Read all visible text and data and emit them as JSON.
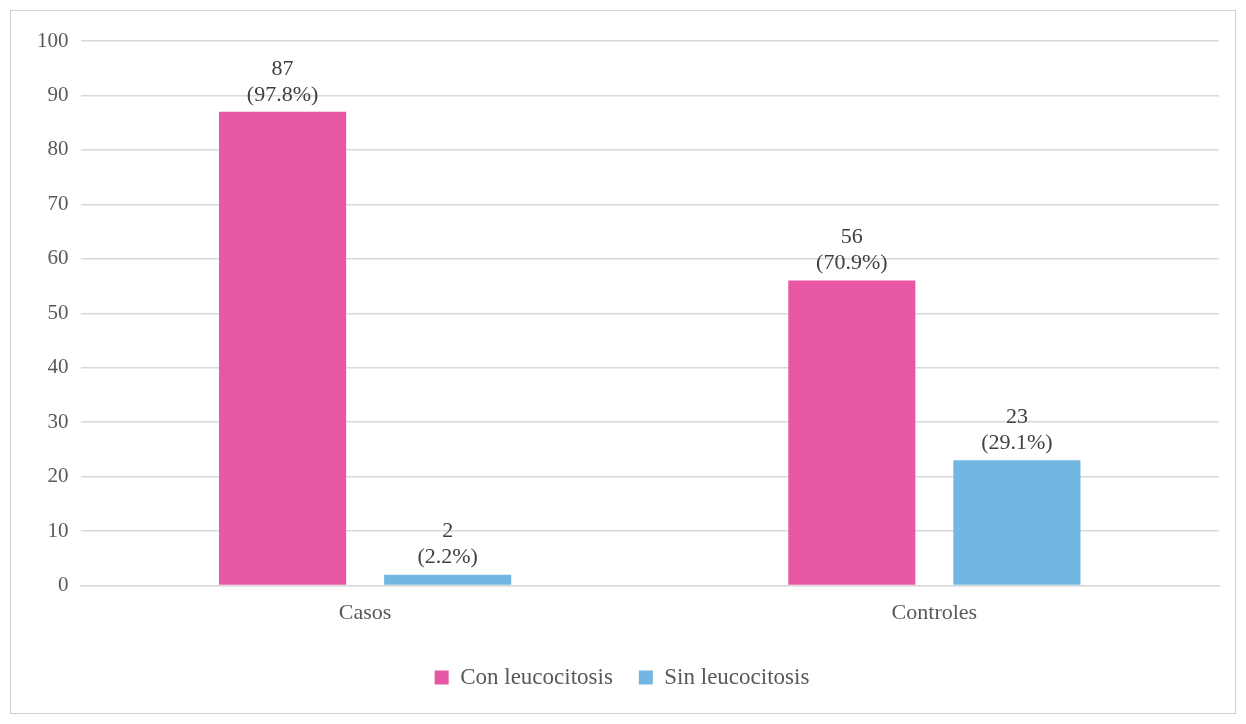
{
  "chart_data": {
    "type": "bar",
    "categories": [
      "Casos",
      "Controles"
    ],
    "series": [
      {
        "name": "Con leucocitosis",
        "color": "#e857a4",
        "values": [
          87,
          56
        ],
        "value_labels": [
          "87\n(97.8%)",
          "56\n(70.9%)"
        ]
      },
      {
        "name": "Sin leucocitosis",
        "color": "#71b7e1",
        "values": [
          2,
          23
        ],
        "value_labels": [
          "2\n(2.2%)",
          "23\n(29.1%)"
        ]
      }
    ],
    "ylim": [
      0,
      100
    ],
    "yticks": [
      0,
      10,
      20,
      30,
      40,
      50,
      60,
      70,
      80,
      90,
      100
    ],
    "grid": "y",
    "legend": "bottom"
  }
}
